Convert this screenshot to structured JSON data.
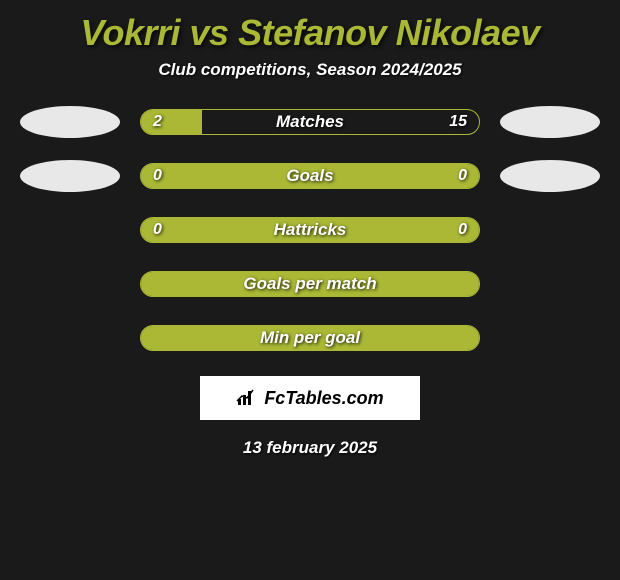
{
  "title": "Vokrri vs Stefanov Nikolaev",
  "subtitle": "Club competitions, Season 2024/2025",
  "date": "13 february 2025",
  "logo_text": "FcTables.com",
  "colors": {
    "background": "#1a1a1a",
    "accent": "#aab835",
    "text": "#ffffff",
    "avatar": "#e8e8e8",
    "logo_bg": "#ffffff",
    "logo_text": "#000000"
  },
  "font": {
    "title_size": 36,
    "subtitle_size": 17,
    "bar_label_size": 17,
    "val_size": 16
  },
  "bars": [
    {
      "label": "Matches",
      "left": "2",
      "right": "15",
      "left_fill_pct": 18,
      "right_fill_pct": 0,
      "full": false,
      "show_avatars": true
    },
    {
      "label": "Goals",
      "left": "0",
      "right": "0",
      "left_fill_pct": 0,
      "right_fill_pct": 0,
      "full": true,
      "show_avatars": true
    },
    {
      "label": "Hattricks",
      "left": "0",
      "right": "0",
      "left_fill_pct": 0,
      "right_fill_pct": 0,
      "full": true,
      "show_avatars": false
    },
    {
      "label": "Goals per match",
      "left": "",
      "right": "",
      "left_fill_pct": 0,
      "right_fill_pct": 0,
      "full": true,
      "show_avatars": false
    },
    {
      "label": "Min per goal",
      "left": "",
      "right": "",
      "left_fill_pct": 0,
      "right_fill_pct": 0,
      "full": true,
      "show_avatars": false
    }
  ]
}
